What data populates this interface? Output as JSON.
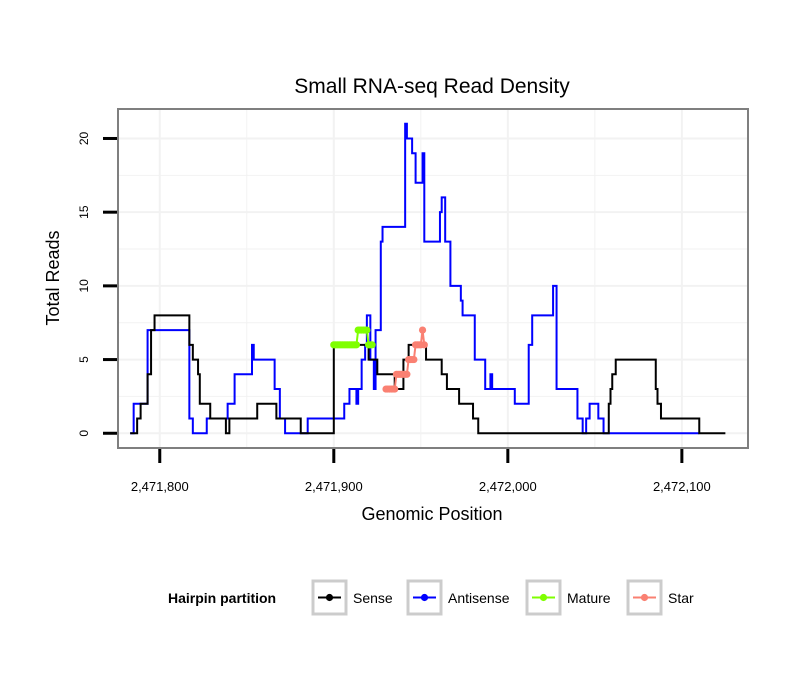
{
  "chart_data": {
    "type": "line",
    "title": "Small RNA-seq Read Density",
    "xlabel": "Genomic Position",
    "ylabel": "Total Reads",
    "xlim": [
      2471776,
      2472138
    ],
    "ylim": [
      -1,
      22
    ],
    "x_ticks": [
      2471800,
      2471900,
      2472000,
      2472100
    ],
    "x_tick_labels": [
      "2,471,800",
      "2,471,900",
      "2,472,000",
      "2,472,100"
    ],
    "y_ticks": [
      0,
      5,
      10,
      15,
      20
    ],
    "y_tick_labels": [
      "0",
      "5",
      "10",
      "15",
      "20"
    ],
    "grid": true,
    "legend": {
      "title": "Hairpin partition",
      "position": "bottom",
      "entries": [
        "Sense",
        "Antisense",
        "Mature",
        "Star"
      ]
    },
    "series": [
      {
        "name": "Antisense",
        "color": "#0000ff",
        "style": "step",
        "x": [
          2471783,
          2471785,
          2471791,
          2471793,
          2471810,
          2471817,
          2471819,
          2471825,
          2471827,
          2471829,
          2471839,
          2471843,
          2471852,
          2471853,
          2471854,
          2471866,
          2471869,
          2471872,
          2471880,
          2471885,
          2471893,
          2471903,
          2471906,
          2471909,
          2471913,
          2471914,
          2471916,
          2471918,
          2471919,
          2471921,
          2471923,
          2471924,
          2471927,
          2471928,
          2471931,
          2471941,
          2471942,
          2471943,
          2471945,
          2471947,
          2471949,
          2471950,
          2471951,
          2471952,
          2471954,
          2471955,
          2471961,
          2471962,
          2471964,
          2471966,
          2471967,
          2471973,
          2471974,
          2471976,
          2471977,
          2471981,
          2471987,
          2471990,
          2471991,
          2471992,
          2472001,
          2472004,
          2472009,
          2472012,
          2472014,
          2472017,
          2472020,
          2472026,
          2472028,
          2472030,
          2472032,
          2472034,
          2472035,
          2472040,
          2472043,
          2472045,
          2472047,
          2472049,
          2472052,
          2472055,
          2472056,
          2472057,
          2472060,
          2472062,
          2472064,
          2472066,
          2472068,
          2472076,
          2472089,
          2472110
        ],
        "values": [
          0,
          2,
          2,
          7,
          7,
          1,
          0,
          0,
          1,
          1,
          2,
          4,
          4,
          6,
          5,
          3,
          1,
          0,
          0,
          1,
          1,
          1,
          2,
          3,
          2,
          3,
          5,
          6,
          8,
          5,
          3,
          7,
          13,
          14,
          14,
          21,
          20,
          20,
          19,
          17,
          17,
          17,
          19,
          13,
          13,
          13,
          15,
          16,
          13,
          13,
          10,
          9,
          8,
          8,
          8,
          5,
          3,
          4,
          3,
          3,
          3,
          2,
          2,
          6,
          8,
          8,
          8,
          10,
          3,
          3,
          3,
          3,
          3,
          1,
          0,
          1,
          2,
          2,
          1,
          0,
          0,
          0,
          0,
          0,
          0,
          0,
          0,
          0,
          0,
          0
        ]
      },
      {
        "name": "Sense",
        "color": "#000000",
        "style": "step",
        "x": [
          2471783,
          2471785,
          2471787,
          2471789,
          2471791,
          2471793,
          2471795,
          2471797,
          2471800,
          2471804,
          2471817,
          2471819,
          2471822,
          2471823,
          2471825,
          2471829,
          2471838,
          2471840,
          2471845,
          2471856,
          2471862,
          2471867,
          2471875,
          2471881,
          2471885,
          2471900,
          2471905,
          2471910,
          2471915,
          2471920,
          2471925,
          2471935,
          2471940,
          2471943,
          2471945,
          2471953,
          2471955,
          2471957,
          2471960,
          2471962,
          2471965,
          2471968,
          2471970,
          2471972,
          2471975,
          2471980,
          2471983,
          2471986,
          2471990,
          2472000,
          2472010,
          2472030,
          2472050,
          2472058,
          2472059,
          2472060,
          2472062,
          2472064,
          2472068,
          2472072,
          2472076,
          2472085,
          2472086,
          2472088,
          2472094,
          2472110,
          2472116,
          2472125
        ],
        "values": [
          0,
          0,
          1,
          2,
          2,
          4,
          7,
          8,
          8,
          8,
          6,
          5,
          4,
          2,
          2,
          1,
          0,
          1,
          1,
          2,
          2,
          1,
          1,
          0,
          0,
          6,
          6,
          6,
          6,
          5,
          4,
          3,
          5,
          6,
          6,
          5,
          5,
          5,
          5,
          4,
          3,
          3,
          3,
          2,
          2,
          1,
          0,
          0,
          0,
          0,
          0,
          0,
          0,
          2,
          3,
          4,
          5,
          5,
          5,
          5,
          5,
          3,
          2,
          1,
          1,
          0,
          0,
          0
        ]
      },
      {
        "name": "Mature",
        "color": "#7fff00",
        "style": "points",
        "x": [
          2471900,
          2471901,
          2471902,
          2471903,
          2471904,
          2471905,
          2471906,
          2471907,
          2471908,
          2471909,
          2471910,
          2471911,
          2471912,
          2471913,
          2471914,
          2471915,
          2471916,
          2471917,
          2471918,
          2471919,
          2471920,
          2471921,
          2471922
        ],
        "values": [
          6,
          6,
          6,
          6,
          6,
          6,
          6,
          6,
          6,
          6,
          6,
          6,
          6,
          6,
          7,
          7,
          7,
          7,
          7,
          7,
          6,
          6,
          6
        ]
      },
      {
        "name": "Star",
        "color": "#fa8072",
        "style": "points",
        "x": [
          2471930,
          2471931,
          2471932,
          2471933,
          2471934,
          2471935,
          2471936,
          2471937,
          2471938,
          2471939,
          2471940,
          2471941,
          2471942,
          2471943,
          2471944,
          2471945,
          2471946,
          2471947,
          2471948,
          2471949,
          2471950,
          2471951,
          2471952
        ],
        "values": [
          3,
          3,
          3,
          3,
          3,
          3,
          4,
          4,
          4,
          4,
          4,
          4,
          4,
          5,
          5,
          5,
          5,
          6,
          6,
          6,
          6,
          7,
          6
        ]
      }
    ]
  }
}
